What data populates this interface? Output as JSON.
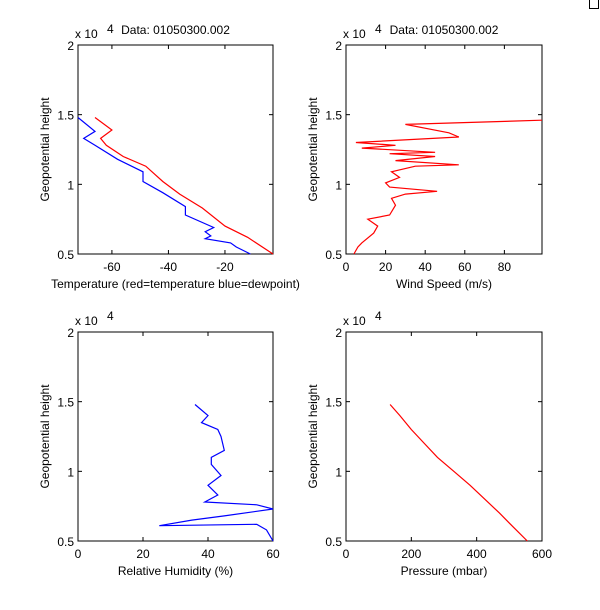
{
  "chart_data": [
    {
      "type": "line",
      "title": "Data: 01050300.002",
      "xlabel": "Temperature (red=temperature blue=dewpoint)",
      "ylabel": "Geopotential height",
      "y_exponent": "x 10",
      "y_exponent_power": "4",
      "xlim": [
        -72,
        -3
      ],
      "ylim": [
        5000,
        20000
      ],
      "xticks": [
        -60,
        -40,
        -20
      ],
      "xtick_labels": [
        "-60",
        "-40",
        "-20"
      ],
      "yticks": [
        5000,
        10000,
        15000,
        20000
      ],
      "ytick_labels": [
        "0.5",
        "1",
        "1.5",
        "2"
      ],
      "series": [
        {
          "name": "temperature",
          "color": "#ff0000",
          "points": [
            [
              -66,
              14800
            ],
            [
              -60,
              13900
            ],
            [
              -64,
              13300
            ],
            [
              -62,
              12800
            ],
            [
              -56,
              12000
            ],
            [
              -48,
              11300
            ],
            [
              -42,
              10200
            ],
            [
              -36,
              9300
            ],
            [
              -28,
              8300
            ],
            [
              -20,
              7000
            ],
            [
              -12,
              6200
            ],
            [
              -3,
              5000
            ]
          ]
        },
        {
          "name": "dewpoint",
          "color": "#0000ff",
          "points": [
            [
              -72,
              14800
            ],
            [
              -66,
              13800
            ],
            [
              -70,
              13300
            ],
            [
              -66,
              12800
            ],
            [
              -58,
              11800
            ],
            [
              -49,
              10900
            ],
            [
              -49,
              10200
            ],
            [
              -42,
              9400
            ],
            [
              -34,
              8400
            ],
            [
              -34,
              7800
            ],
            [
              -24,
              6900
            ],
            [
              -27,
              6600
            ],
            [
              -25,
              6300
            ],
            [
              -27,
              6100
            ],
            [
              -18,
              5800
            ],
            [
              -16,
              5500
            ],
            [
              -11,
              5000
            ]
          ]
        }
      ]
    },
    {
      "type": "line",
      "title": "Data: 01050300.002",
      "xlabel": "Wind Speed (m/s)",
      "ylabel": "Geopotential height",
      "y_exponent": "x 10",
      "y_exponent_power": "4",
      "xlim": [
        0,
        99
      ],
      "ylim": [
        5000,
        20000
      ],
      "xticks": [
        0,
        20,
        40,
        60,
        80
      ],
      "xtick_labels": [
        "0",
        "20",
        "40",
        "60",
        "80"
      ],
      "yticks": [
        5000,
        10000,
        15000,
        20000
      ],
      "ytick_labels": [
        "0.5",
        "1",
        "1.5",
        "2"
      ],
      "series": [
        {
          "name": "wind speed",
          "color": "#ff0000",
          "points": [
            [
              4,
              5000
            ],
            [
              6,
              5500
            ],
            [
              8,
              5800
            ],
            [
              14,
              6500
            ],
            [
              16,
              7000
            ],
            [
              11,
              7500
            ],
            [
              22,
              7800
            ],
            [
              25,
              8500
            ],
            [
              23,
              9000
            ],
            [
              30,
              9300
            ],
            [
              46,
              9500
            ],
            [
              22,
              9800
            ],
            [
              20,
              10100
            ],
            [
              27,
              10500
            ],
            [
              23,
              10900
            ],
            [
              35,
              11300
            ],
            [
              57,
              11400
            ],
            [
              25,
              11700
            ],
            [
              45,
              12000
            ],
            [
              22,
              12200
            ],
            [
              45,
              12300
            ],
            [
              8,
              12600
            ],
            [
              25,
              12800
            ],
            [
              5,
              13000
            ],
            [
              57,
              13400
            ],
            [
              52,
              13700
            ],
            [
              30,
              14300
            ],
            [
              99,
              14600
            ]
          ]
        }
      ]
    },
    {
      "type": "line",
      "title": "",
      "xlabel": "Relative Humidity (%)",
      "ylabel": "Geopotential height",
      "y_exponent": "x 10",
      "y_exponent_power": "4",
      "xlim": [
        0,
        60
      ],
      "ylim": [
        5000,
        20000
      ],
      "xticks": [
        0,
        20,
        40,
        60
      ],
      "xtick_labels": [
        "0",
        "20",
        "40",
        "60"
      ],
      "yticks": [
        5000,
        10000,
        15000,
        20000
      ],
      "ytick_labels": [
        "0.5",
        "1",
        "1.5",
        "2"
      ],
      "series": [
        {
          "name": "relative humidity",
          "color": "#0000ff",
          "points": [
            [
              36,
              14800
            ],
            [
              40,
              14000
            ],
            [
              38,
              13500
            ],
            [
              43,
              13000
            ],
            [
              44,
              12500
            ],
            [
              45,
              11500
            ],
            [
              41,
              11000
            ],
            [
              41,
              10500
            ],
            [
              44,
              9700
            ],
            [
              40,
              9000
            ],
            [
              43,
              8300
            ],
            [
              39,
              7800
            ],
            [
              55,
              7600
            ],
            [
              60,
              7300
            ],
            [
              45,
              6800
            ],
            [
              35,
              6500
            ],
            [
              25,
              6100
            ],
            [
              55,
              6200
            ],
            [
              58,
              5800
            ],
            [
              60,
              5000
            ]
          ]
        }
      ]
    },
    {
      "type": "line",
      "title": "",
      "xlabel": "Pressure (mbar)",
      "ylabel": "Geopotential height",
      "y_exponent": "x 10",
      "y_exponent_power": "4",
      "xlim": [
        0,
        600
      ],
      "ylim": [
        5000,
        20000
      ],
      "xticks": [
        0,
        200,
        400,
        600
      ],
      "xtick_labels": [
        "0",
        "200",
        "400",
        "600"
      ],
      "yticks": [
        5000,
        10000,
        15000,
        20000
      ],
      "ytick_labels": [
        "0.5",
        "1",
        "1.5",
        "2"
      ],
      "series": [
        {
          "name": "pressure",
          "color": "#ff0000",
          "points": [
            [
              135,
              14800
            ],
            [
              165,
              14000
            ],
            [
              200,
              13000
            ],
            [
              240,
              12000
            ],
            [
              280,
              11000
            ],
            [
              330,
              10000
            ],
            [
              380,
              9000
            ],
            [
              425,
              8000
            ],
            [
              470,
              7000
            ],
            [
              512,
              6000
            ],
            [
              555,
              5000
            ]
          ]
        }
      ]
    }
  ]
}
